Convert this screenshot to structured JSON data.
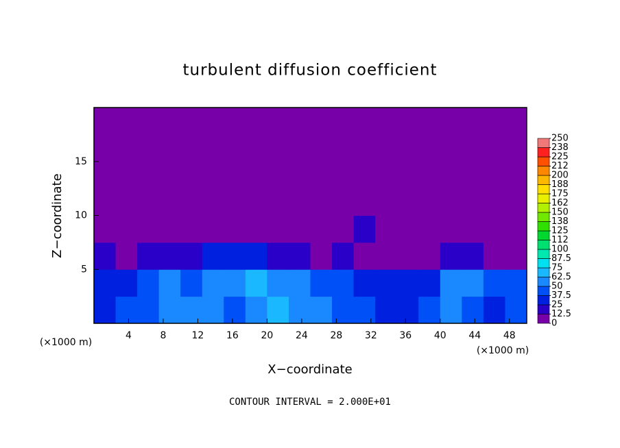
{
  "chart_data": {
    "type": "contour",
    "title": "turbulent diffusion coefficient",
    "x_label": "X−coordinate",
    "y_label": "Z−coordinate",
    "unit_labels": [
      "(×1000 m)",
      "(×1000 m)"
    ],
    "footnote": "CONTOUR INTERVAL = 2.000E+01",
    "xlim": [
      0,
      50
    ],
    "xticks": [
      4,
      8,
      12,
      16,
      20,
      24,
      28,
      32,
      36,
      40,
      44,
      48
    ],
    "ylim": [
      0,
      20
    ],
    "yticks": [
      5,
      10,
      15
    ],
    "x": [
      1.25,
      3.75,
      6.25,
      8.75,
      11.25,
      13.75,
      16.25,
      18.75,
      21.25,
      23.75,
      26.25,
      28.75,
      31.25,
      33.75,
      36.25,
      38.75,
      41.25,
      43.75,
      46.25,
      48.75
    ],
    "y": [
      1.25,
      3.75,
      6.25,
      8.75,
      11.25,
      13.75,
      16.25,
      18.75
    ],
    "z": [
      [
        35,
        40,
        45,
        55,
        60,
        50,
        45,
        60,
        70,
        55,
        50,
        45,
        40,
        35,
        30,
        40,
        55,
        40,
        35,
        40
      ],
      [
        30,
        35,
        45,
        50,
        40,
        55,
        60,
        65,
        60,
        55,
        45,
        40,
        35,
        30,
        25,
        30,
        50,
        55,
        45,
        40
      ],
      [
        15,
        10,
        15,
        20,
        15,
        25,
        30,
        25,
        20,
        15,
        10,
        15,
        10,
        10,
        5,
        5,
        20,
        20,
        10,
        5
      ],
      [
        0,
        0,
        0,
        0,
        0,
        0,
        0,
        0,
        0,
        0,
        0,
        0,
        15,
        0,
        0,
        0,
        0,
        0,
        0,
        0
      ],
      [
        0,
        0,
        0,
        0,
        0,
        0,
        0,
        0,
        0,
        0,
        0,
        0,
        0,
        0,
        0,
        0,
        0,
        0,
        0,
        0
      ],
      [
        0,
        0,
        0,
        0,
        0,
        0,
        0,
        0,
        0,
        0,
        0,
        0,
        0,
        0,
        0,
        0,
        0,
        0,
        0,
        0
      ],
      [
        0,
        0,
        0,
        0,
        0,
        0,
        0,
        0,
        0,
        0,
        0,
        0,
        0,
        0,
        0,
        0,
        0,
        0,
        0,
        0
      ],
      [
        0,
        0,
        0,
        0,
        0,
        0,
        0,
        0,
        0,
        0,
        0,
        0,
        0,
        0,
        0,
        0,
        0,
        0,
        0,
        0
      ]
    ],
    "colorbar": {
      "levels": [
        0,
        12.5,
        25,
        37.5,
        50,
        62.5,
        75,
        87.5,
        100,
        112,
        125,
        138,
        150,
        162,
        175,
        188,
        200,
        212,
        225,
        238,
        250
      ],
      "colors": [
        "#7800a8",
        "#2a00c8",
        "#0020e0",
        "#0050f8",
        "#1a88ff",
        "#1ab8ff",
        "#00e0f0",
        "#00e8b0",
        "#00e070",
        "#00d830",
        "#30e000",
        "#70e800",
        "#b0f000",
        "#e8f000",
        "#ffe000",
        "#ffb800",
        "#ff8800",
        "#ff5000",
        "#ff2020",
        "#f07878"
      ]
    }
  }
}
